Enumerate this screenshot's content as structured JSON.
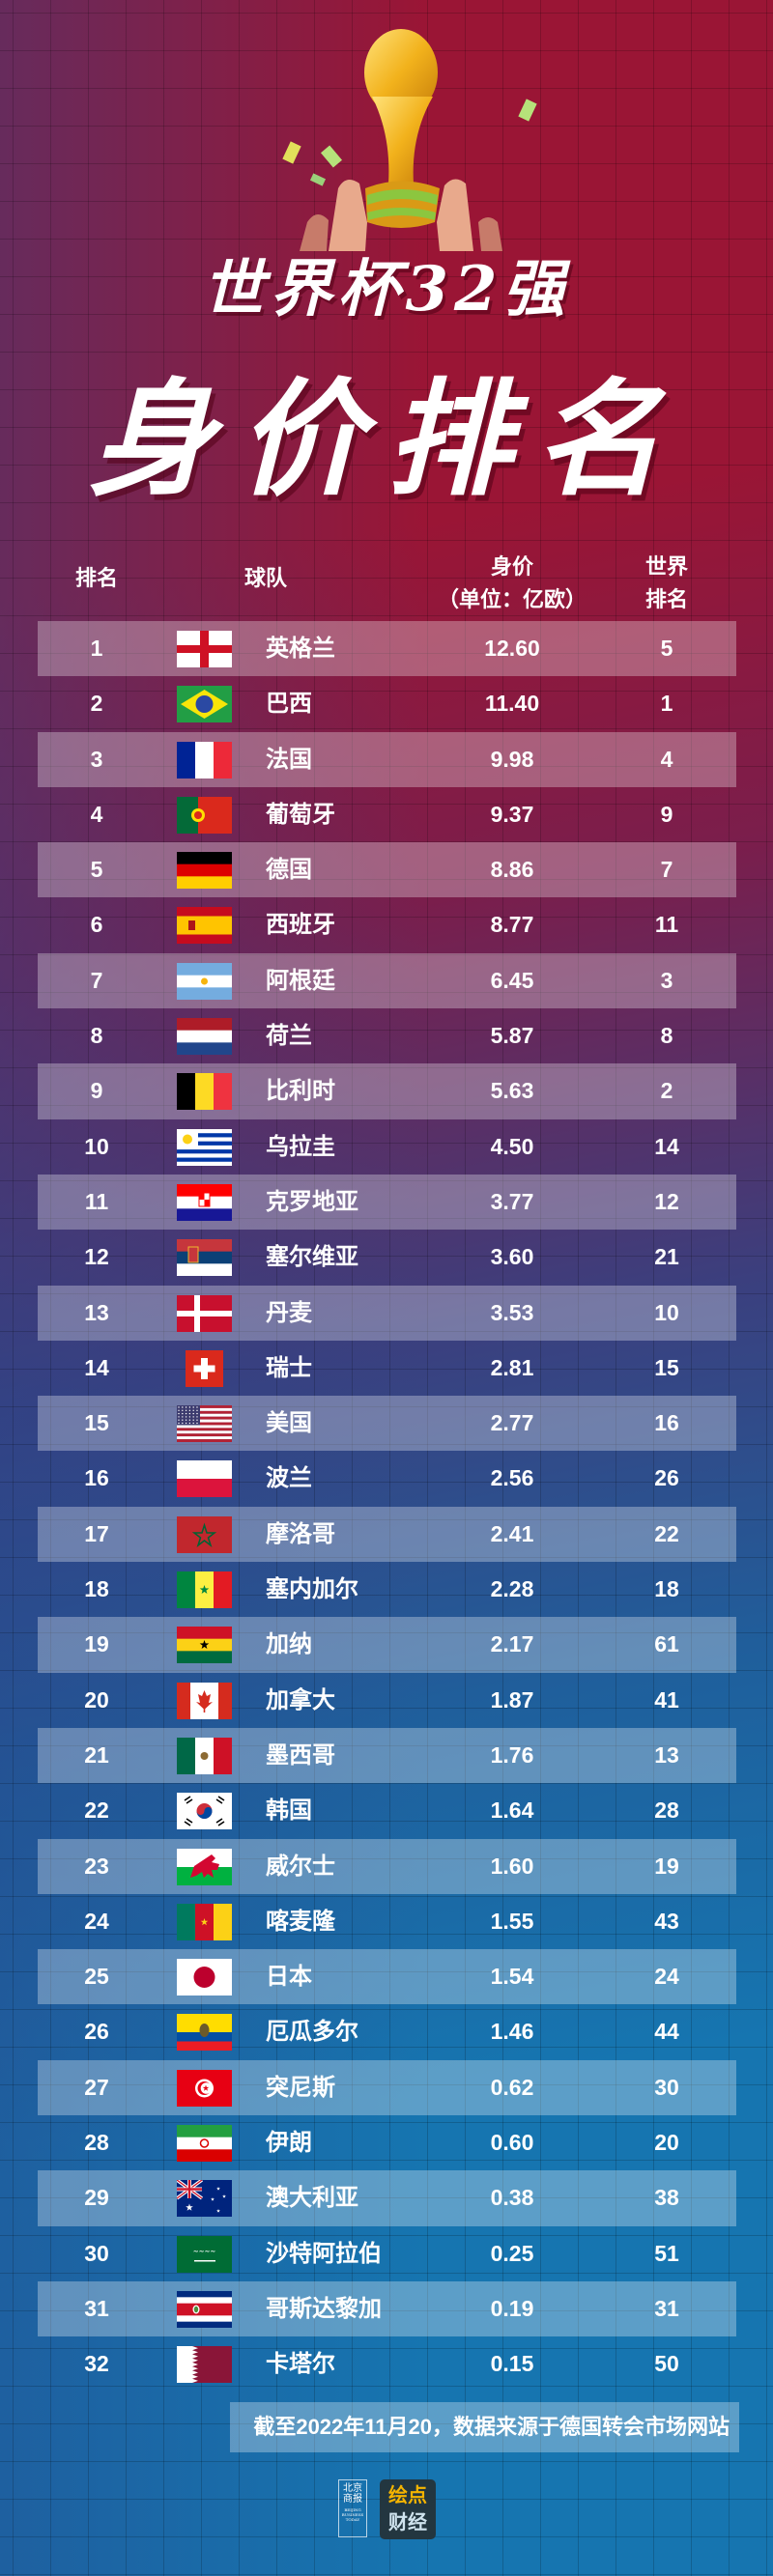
{
  "header": {
    "title_line1": "世界杯32强",
    "title_line2": "身价排名",
    "trophy_icon": "world-cup-trophy-icon"
  },
  "table": {
    "columns": {
      "rank": "排名",
      "team": "球队",
      "value_line1": "身价",
      "value_line2": "（单位：亿欧）",
      "world_line1": "世界",
      "world_line2": "排名"
    },
    "rows": [
      {
        "rank": "1",
        "flag": "england",
        "team": "英格兰",
        "value": "12.60",
        "world_rank": "5"
      },
      {
        "rank": "2",
        "flag": "brazil",
        "team": "巴西",
        "value": "11.40",
        "world_rank": "1"
      },
      {
        "rank": "3",
        "flag": "france",
        "team": "法国",
        "value": "9.98",
        "world_rank": "4"
      },
      {
        "rank": "4",
        "flag": "portugal",
        "team": "葡萄牙",
        "value": "9.37",
        "world_rank": "9"
      },
      {
        "rank": "5",
        "flag": "germany",
        "team": "德国",
        "value": "8.86",
        "world_rank": "7"
      },
      {
        "rank": "6",
        "flag": "spain",
        "team": "西班牙",
        "value": "8.77",
        "world_rank": "11"
      },
      {
        "rank": "7",
        "flag": "argentina",
        "team": "阿根廷",
        "value": "6.45",
        "world_rank": "3"
      },
      {
        "rank": "8",
        "flag": "netherlands",
        "team": "荷兰",
        "value": "5.87",
        "world_rank": "8"
      },
      {
        "rank": "9",
        "flag": "belgium",
        "team": "比利时",
        "value": "5.63",
        "world_rank": "2"
      },
      {
        "rank": "10",
        "flag": "uruguay",
        "team": "乌拉圭",
        "value": "4.50",
        "world_rank": "14"
      },
      {
        "rank": "11",
        "flag": "croatia",
        "team": "克罗地亚",
        "value": "3.77",
        "world_rank": "12"
      },
      {
        "rank": "12",
        "flag": "serbia",
        "team": "塞尔维亚",
        "value": "3.60",
        "world_rank": "21"
      },
      {
        "rank": "13",
        "flag": "denmark",
        "team": "丹麦",
        "value": "3.53",
        "world_rank": "10"
      },
      {
        "rank": "14",
        "flag": "switzerland",
        "team": "瑞士",
        "value": "2.81",
        "world_rank": "15"
      },
      {
        "rank": "15",
        "flag": "usa",
        "team": "美国",
        "value": "2.77",
        "world_rank": "16"
      },
      {
        "rank": "16",
        "flag": "poland",
        "team": "波兰",
        "value": "2.56",
        "world_rank": "26"
      },
      {
        "rank": "17",
        "flag": "morocco",
        "team": "摩洛哥",
        "value": "2.41",
        "world_rank": "22"
      },
      {
        "rank": "18",
        "flag": "senegal",
        "team": "塞内加尔",
        "value": "2.28",
        "world_rank": "18"
      },
      {
        "rank": "19",
        "flag": "ghana",
        "team": "加纳",
        "value": "2.17",
        "world_rank": "61"
      },
      {
        "rank": "20",
        "flag": "canada",
        "team": "加拿大",
        "value": "1.87",
        "world_rank": "41"
      },
      {
        "rank": "21",
        "flag": "mexico",
        "team": "墨西哥",
        "value": "1.76",
        "world_rank": "13"
      },
      {
        "rank": "22",
        "flag": "south-korea",
        "team": "韩国",
        "value": "1.64",
        "world_rank": "28"
      },
      {
        "rank": "23",
        "flag": "wales",
        "team": "威尔士",
        "value": "1.60",
        "world_rank": "19"
      },
      {
        "rank": "24",
        "flag": "cameroon",
        "team": "喀麦隆",
        "value": "1.55",
        "world_rank": "43"
      },
      {
        "rank": "25",
        "flag": "japan",
        "team": "日本",
        "value": "1.54",
        "world_rank": "24"
      },
      {
        "rank": "26",
        "flag": "ecuador",
        "team": "厄瓜多尔",
        "value": "1.46",
        "world_rank": "44"
      },
      {
        "rank": "27",
        "flag": "tunisia",
        "team": "突尼斯",
        "value": "0.62",
        "world_rank": "30"
      },
      {
        "rank": "28",
        "flag": "iran",
        "team": "伊朗",
        "value": "0.60",
        "world_rank": "20"
      },
      {
        "rank": "29",
        "flag": "australia",
        "team": "澳大利亚",
        "value": "0.38",
        "world_rank": "38"
      },
      {
        "rank": "30",
        "flag": "saudi-arabia",
        "team": "沙特阿拉伯",
        "value": "0.25",
        "world_rank": "51"
      },
      {
        "rank": "31",
        "flag": "costa-rica",
        "team": "哥斯达黎加",
        "value": "0.19",
        "world_rank": "31"
      },
      {
        "rank": "32",
        "flag": "qatar",
        "team": "卡塔尔",
        "value": "0.15",
        "world_rank": "50"
      }
    ]
  },
  "footer": {
    "source_note": "截至2022年11月20，数据来源于德国转会市场网站",
    "logo1_cn": "北京商报",
    "logo1_en": "BEIJING BUSINESS TODAY",
    "logo2_line1": "绘点",
    "logo2_line2": "财经"
  },
  "colors": {
    "top_bg": "#9a1535",
    "bottom_bg": "#1675b0",
    "row_stripe": "rgba(255,255,255,0.30)",
    "text": "#ffffff"
  },
  "chart_data": {
    "type": "table",
    "title": "世界杯32强身价排名",
    "columns": [
      "排名",
      "球队",
      "身价（单位：亿欧）",
      "世界排名"
    ],
    "categories": [
      "英格兰",
      "巴西",
      "法国",
      "葡萄牙",
      "德国",
      "西班牙",
      "阿根廷",
      "荷兰",
      "比利时",
      "乌拉圭",
      "克罗地亚",
      "塞尔维亚",
      "丹麦",
      "瑞士",
      "美国",
      "波兰",
      "摩洛哥",
      "塞内加尔",
      "加纳",
      "加拿大",
      "墨西哥",
      "韩国",
      "威尔士",
      "喀麦隆",
      "日本",
      "厄瓜多尔",
      "突尼斯",
      "伊朗",
      "澳大利亚",
      "沙特阿拉伯",
      "哥斯达黎加",
      "卡塔尔"
    ],
    "series": [
      {
        "name": "身价（亿欧）",
        "values": [
          12.6,
          11.4,
          9.98,
          9.37,
          8.86,
          8.77,
          6.45,
          5.87,
          5.63,
          4.5,
          3.77,
          3.6,
          3.53,
          2.81,
          2.77,
          2.56,
          2.41,
          2.28,
          2.17,
          1.87,
          1.76,
          1.64,
          1.6,
          1.55,
          1.54,
          1.46,
          0.62,
          0.6,
          0.38,
          0.25,
          0.19,
          0.15
        ]
      },
      {
        "name": "世界排名",
        "values": [
          5,
          1,
          4,
          9,
          7,
          11,
          3,
          8,
          2,
          14,
          12,
          21,
          10,
          15,
          16,
          26,
          22,
          18,
          61,
          41,
          13,
          28,
          19,
          43,
          24,
          44,
          30,
          20,
          38,
          51,
          31,
          50
        ]
      }
    ],
    "annotations": [
      "截至2022年11月20，数据来源于德国转会市场网站"
    ]
  }
}
